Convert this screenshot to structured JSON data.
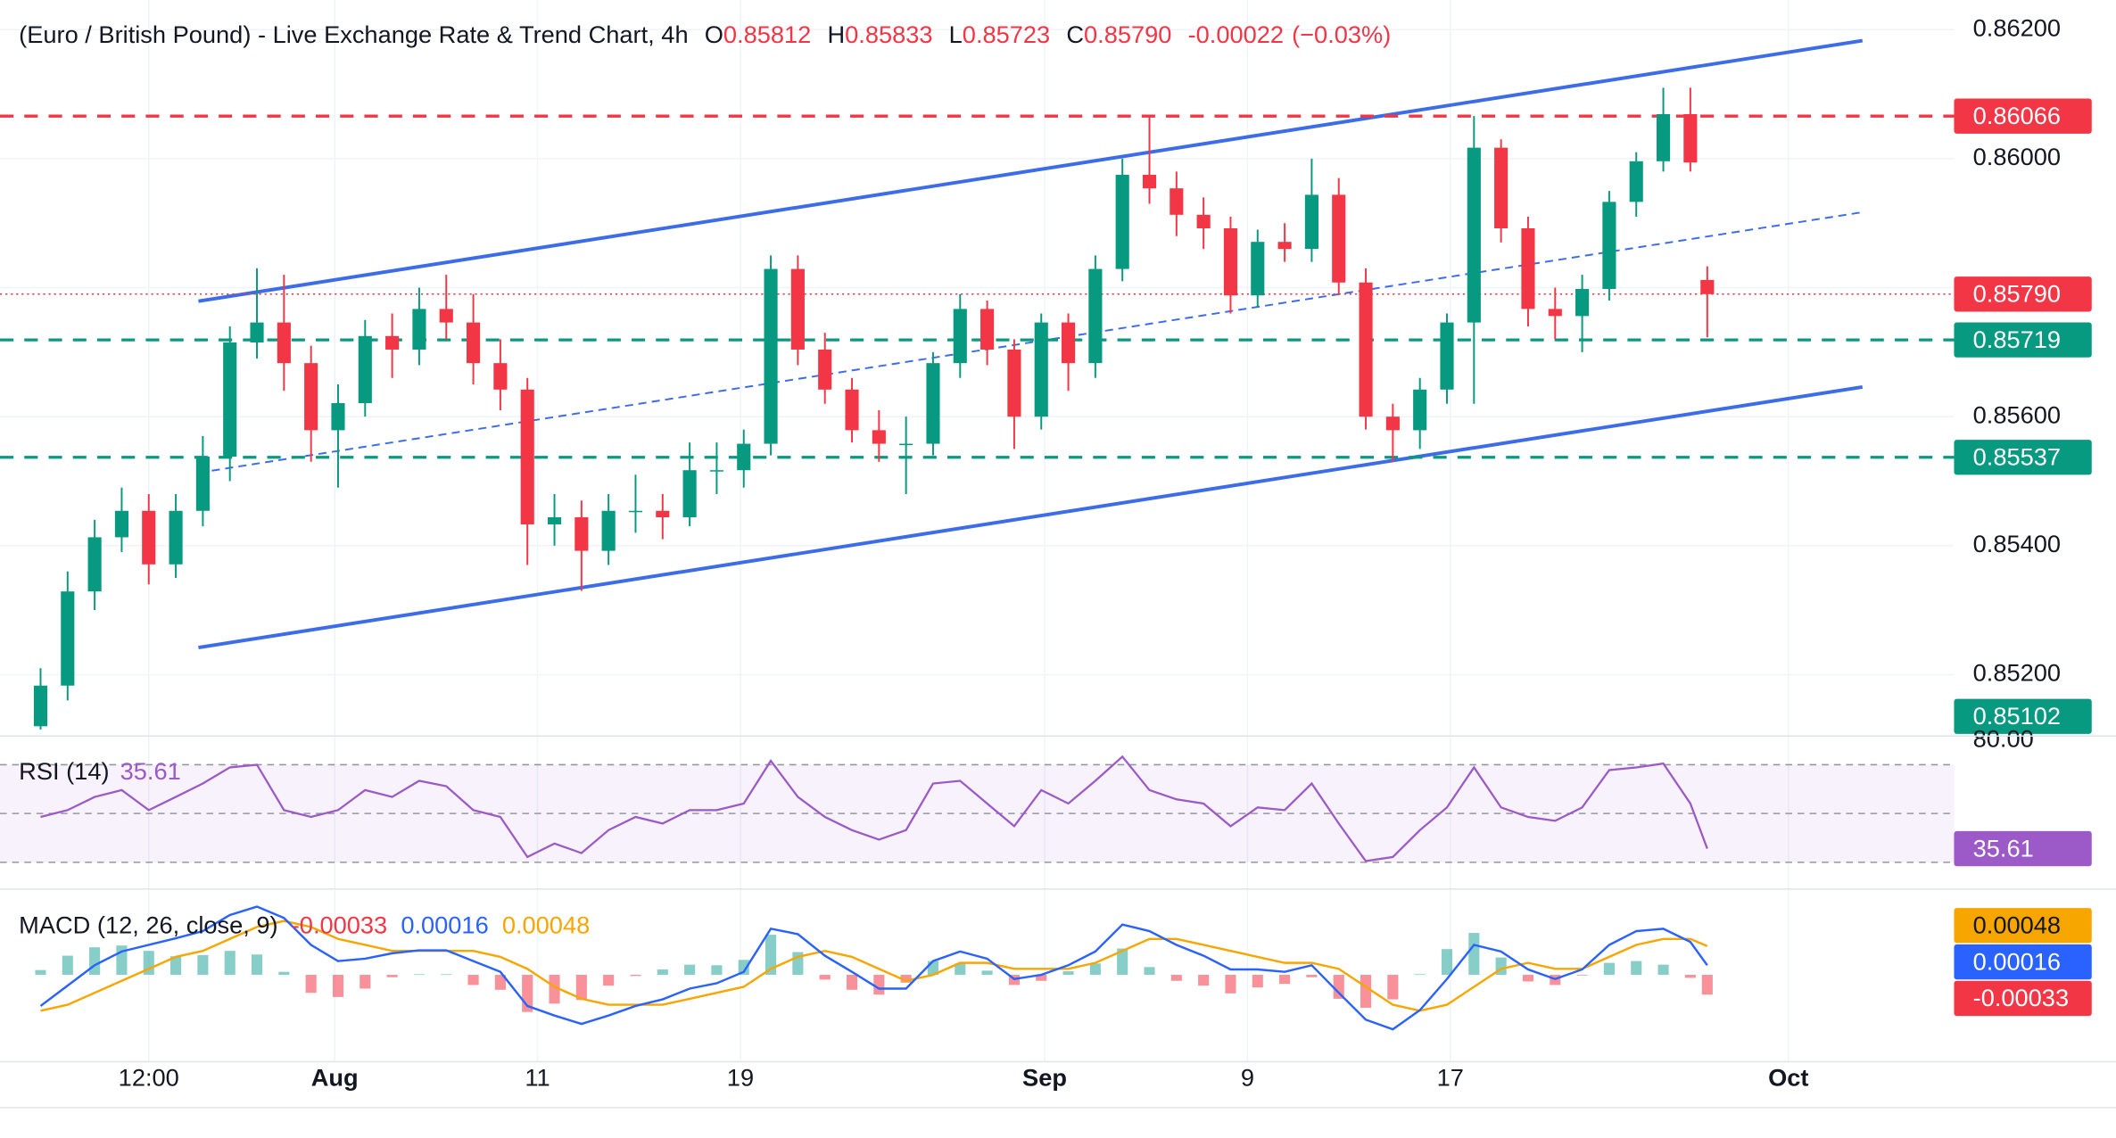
{
  "chart_data": {
    "type": "candlestick",
    "title": "(Euro / British Pound) - Live Exchange Rate & Trend Chart, 4h",
    "ohlc_summary": [
      {
        "key": "O",
        "value": 0.85812
      },
      {
        "key": "H",
        "value": 0.85833
      },
      {
        "key": "L",
        "value": 0.85723
      },
      {
        "key": "C",
        "value": 0.8579,
        "label": "0.85790"
      }
    ],
    "change": -0.00022,
    "change_pct": {
      "value": -0.03,
      "label": "(−0.03%)"
    },
    "up_color": "#089981",
    "down_color": "#f23645",
    "grid": true,
    "x": [
      -8.7,
      -7.9,
      -7.1,
      -6.3,
      -5.5,
      -4.7,
      -3.9,
      -3.1,
      -2.3,
      -1.5,
      -0.7,
      0.1,
      0.9,
      1.7,
      2.5,
      3.3,
      4.1,
      4.9,
      5.7,
      6.5,
      7.3,
      8.1,
      8.9,
      9.7,
      10.5,
      11.3,
      12.1,
      12.9,
      13.7,
      14.5,
      15.3,
      16.1,
      16.9,
      17.7,
      18.5,
      19.3,
      20.1,
      20.9,
      21.7,
      22.5,
      23.3,
      24.1,
      24.9,
      25.7,
      26.5,
      27.3,
      28.1,
      28.9,
      29.7,
      30.5,
      31.3,
      32.1,
      32.9,
      33.7,
      34.5,
      35.3,
      36.1,
      36.9,
      37.7,
      38.5,
      39.3,
      40.1,
      40.6
    ],
    "open": [
      0.8512,
      0.85183,
      0.85329,
      0.85413,
      0.85454,
      0.85371,
      0.85454,
      0.85538,
      0.85715,
      0.85746,
      0.85683,
      0.85579,
      0.85621,
      0.85725,
      0.85704,
      0.85767,
      0.85746,
      0.85683,
      0.85642,
      0.85433,
      0.85444,
      0.85392,
      0.85454,
      0.85454,
      0.85444,
      0.85517,
      0.85517,
      0.85558,
      0.85829,
      0.85704,
      0.85642,
      0.85579,
      0.85558,
      0.85558,
      0.85683,
      0.85767,
      0.85704,
      0.856,
      0.85746,
      0.85683,
      0.85829,
      0.85975,
      0.85954,
      0.85913,
      0.85892,
      0.85788,
      0.85871,
      0.8586,
      0.85944,
      0.85808,
      0.856,
      0.85579,
      0.85642,
      0.85746,
      0.86017,
      0.85892,
      0.85767,
      0.85756,
      0.85798,
      0.85933,
      0.85996,
      0.86069,
      0.85812
    ],
    "high": [
      0.8521,
      0.8536,
      0.8544,
      0.8549,
      0.8548,
      0.8548,
      0.8557,
      0.8574,
      0.8583,
      0.8582,
      0.8571,
      0.8565,
      0.8575,
      0.8576,
      0.858,
      0.8582,
      0.8579,
      0.8572,
      0.8566,
      0.8548,
      0.8547,
      0.8548,
      0.8551,
      0.8548,
      0.8556,
      0.8556,
      0.8558,
      0.8585,
      0.8585,
      0.8573,
      0.8566,
      0.8561,
      0.856,
      0.857,
      0.8579,
      0.8578,
      0.8572,
      0.8576,
      0.8576,
      0.8585,
      0.86,
      0.86066,
      0.8598,
      0.8594,
      0.8591,
      0.8589,
      0.859,
      0.86,
      0.8597,
      0.8583,
      0.8562,
      0.8566,
      0.8576,
      0.86066,
      0.8603,
      0.8591,
      0.858,
      0.8582,
      0.8595,
      0.8601,
      0.8611,
      0.8611,
      0.85833
    ],
    "low": [
      0.85115,
      0.8516,
      0.853,
      0.8539,
      0.8534,
      0.8535,
      0.8543,
      0.855,
      0.8569,
      0.8564,
      0.8553,
      0.8549,
      0.856,
      0.8566,
      0.8568,
      0.8572,
      0.8565,
      0.8561,
      0.8537,
      0.854,
      0.8533,
      0.8537,
      0.8542,
      0.8541,
      0.8543,
      0.8548,
      0.8549,
      0.8554,
      0.8568,
      0.8562,
      0.8556,
      0.8553,
      0.8548,
      0.8554,
      0.8566,
      0.8568,
      0.8555,
      0.8558,
      0.8564,
      0.8566,
      0.8581,
      0.8593,
      0.8588,
      0.8586,
      0.8576,
      0.8577,
      0.8584,
      0.8584,
      0.8579,
      0.8558,
      0.8553,
      0.8555,
      0.8562,
      0.8562,
      0.8587,
      0.8574,
      0.8572,
      0.857,
      0.8578,
      0.8591,
      0.8598,
      0.8598,
      0.85723
    ],
    "close": [
      0.85183,
      0.85329,
      0.85413,
      0.85454,
      0.85371,
      0.85454,
      0.85538,
      0.85715,
      0.85746,
      0.85683,
      0.85579,
      0.85621,
      0.85725,
      0.85704,
      0.85767,
      0.85746,
      0.85683,
      0.85642,
      0.85433,
      0.85444,
      0.85392,
      0.85454,
      0.85454,
      0.85444,
      0.85517,
      0.85517,
      0.85558,
      0.85829,
      0.85704,
      0.85642,
      0.85579,
      0.85558,
      0.85558,
      0.85683,
      0.85767,
      0.85704,
      0.856,
      0.85746,
      0.85683,
      0.85829,
      0.85975,
      0.85954,
      0.85913,
      0.85892,
      0.85788,
      0.85871,
      0.8586,
      0.85944,
      0.85808,
      0.856,
      0.85579,
      0.85642,
      0.85746,
      0.86017,
      0.85892,
      0.85767,
      0.85756,
      0.85798,
      0.85933,
      0.85996,
      0.86069,
      0.85994,
      0.8579
    ],
    "xlim": [
      -9.9,
      47.9
    ],
    "xticks": [
      {
        "value": -5.5,
        "label": "12:00"
      },
      {
        "value": 0,
        "label": "Aug"
      },
      {
        "value": 6,
        "label": "11"
      },
      {
        "value": 12,
        "label": "19"
      },
      {
        "value": 21,
        "label": "Sep"
      },
      {
        "value": 27,
        "label": "9"
      },
      {
        "value": 33,
        "label": "17"
      },
      {
        "value": 43,
        "label": "Oct"
      }
    ],
    "ylim": [
      0.85106,
      0.86246
    ],
    "yticks": [
      {
        "value": 0.862,
        "label": "0.86200"
      },
      {
        "value": 0.86,
        "label": "0.86000"
      },
      {
        "value": 0.858,
        "label": "0.85800"
      },
      {
        "value": 0.856,
        "label": "0.85600"
      },
      {
        "value": 0.854,
        "label": "0.85400"
      },
      {
        "value": 0.852,
        "label": "0.85200"
      }
    ],
    "levels": [
      {
        "value": 0.86066,
        "color": "#f23645",
        "line": "dashed"
      },
      {
        "value": 0.8579,
        "label": "0.85790",
        "color": "#f23645",
        "line": "dotted"
      },
      {
        "value": 0.85719,
        "color": "#089981",
        "line": "dashed"
      },
      {
        "value": 0.85537,
        "color": "#089981",
        "line": "dashed"
      },
      {
        "value": 0.85102,
        "color": "#089981",
        "line": "none"
      }
    ],
    "trendlines": [
      {
        "x": [
          -4.03,
          45.19
        ],
        "y": [
          0.85779,
          0.86183
        ],
        "color": "#3d6ce8",
        "style": "solid"
      },
      {
        "x": [
          -4.03,
          45.19
        ],
        "y": [
          0.85242,
          0.85646
        ],
        "color": "#3d6ce8",
        "style": "solid"
      },
      {
        "x": [
          -4.03,
          45.19
        ],
        "y": [
          0.85513,
          0.85917
        ],
        "color": "#3d6ce8",
        "style": "dashed"
      }
    ],
    "rsi": {
      "title": "RSI (14)",
      "color": "#9c59c8",
      "ylim": [
        19.6,
        81.5
      ],
      "yticks": [
        {
          "value": 80,
          "label": "80.00"
        }
      ],
      "levels": [
        70,
        50,
        30
      ],
      "values": [
        48.6,
        51.4,
        56.8,
        59.6,
        51.4,
        56.8,
        62.3,
        68.9,
        70,
        51.4,
        48.6,
        51.4,
        59.6,
        56.8,
        63.4,
        61.2,
        51.4,
        48.6,
        32.2,
        37.7,
        33.8,
        43.2,
        48.6,
        45.9,
        51.4,
        51.4,
        54.1,
        71.6,
        56.8,
        48.6,
        43.2,
        39.3,
        43.2,
        62.3,
        63.4,
        54.1,
        44.8,
        59.6,
        54.1,
        63.4,
        73.3,
        59.6,
        55.8,
        54.1,
        44.8,
        52.5,
        51.4,
        62.3,
        45.9,
        30.5,
        32.2,
        43.2,
        52.5,
        68.9,
        52.5,
        48.6,
        47,
        52.5,
        67.8,
        68.9,
        70.5,
        54.1,
        35.61
      ]
    },
    "macd": {
      "title": "MACD (12, 26, close, 9)",
      "ylim": [
        -0.00143,
        0.00141
      ],
      "macd_line": {
        "color": "#2962ff",
        "values": [
          -0.00052,
          -0.00018,
          0.00016,
          0.00039,
          0.0005,
          0.00061,
          0.00073,
          0.001,
          0.00114,
          0.00095,
          0.0005,
          0.00023,
          0.00027,
          0.00036,
          0.00041,
          0.00041,
          0.00023,
          5e-05,
          -0.00052,
          -0.00068,
          -0.00082,
          -0.00068,
          -0.00052,
          -0.00041,
          -0.00023,
          -0.00014,
          5e-05,
          0.00077,
          0.00068,
          0.00032,
          5e-05,
          -0.00023,
          -0.00023,
          0.00023,
          0.00039,
          0.00027,
          -7e-05,
          0,
          0.00016,
          0.00039,
          0.00084,
          0.00073,
          0.0005,
          0.00032,
          9e-05,
          9e-05,
          5e-05,
          0.00016,
          -0.0003,
          -0.00075,
          -0.00091,
          -0.00059,
          -7e-05,
          0.0005,
          0.00039,
          9e-05,
          -7e-05,
          9e-05,
          0.0005,
          0.00073,
          0.00077,
          0.00055,
          0.00016
        ]
      },
      "signal_line": {
        "color": "#f7a600",
        "values": [
          -0.0006,
          -0.0005,
          -0.0003,
          -0.0001,
          0.0001,
          0.0003,
          0.0004,
          0.0006,
          0.0008,
          0.0009,
          0.0008,
          0.0006,
          0.0005,
          0.0004,
          0.0004,
          0.0004,
          0.0004,
          0.0003,
          0.0001,
          -0.0002,
          -0.0004,
          -0.0005,
          -0.0005,
          -0.0005,
          -0.0004,
          -0.0003,
          -0.0002,
          0.0001,
          0.0003,
          0.0004,
          0.0003,
          0.0001,
          -0.0001,
          0,
          0.0002,
          0.0002,
          0.0001,
          0.0001,
          0.0001,
          0.0002,
          0.0004,
          0.0006,
          0.0006,
          0.0005,
          0.0004,
          0.0003,
          0.0002,
          0.0002,
          0.0001,
          -0.0002,
          -0.0005,
          -0.0006,
          -0.0005,
          -0.0002,
          0.0001,
          0.0002,
          0.0001,
          0.0001,
          0.0003,
          0.0005,
          0.0006,
          0.0006,
          0.00048
        ]
      },
      "histogram": {
        "up_color": "#26a69a",
        "down_color": "#f23645",
        "values": [
          8e-05,
          0.00032,
          0.00046,
          0.00049,
          0.0004,
          0.00031,
          0.00033,
          0.0004,
          0.00034,
          5e-05,
          -0.0003,
          -0.00037,
          -0.00023,
          -4e-05,
          1e-05,
          1e-05,
          -0.00017,
          -0.00025,
          -0.00062,
          -0.00048,
          -0.00042,
          -0.00018,
          -2e-05,
          9e-05,
          0.00017,
          0.00016,
          0.00025,
          0.00067,
          0.00038,
          -8e-05,
          -0.00025,
          -0.00033,
          -0.00013,
          0.00023,
          0.00019,
          7e-05,
          -0.00017,
          -0.0001,
          6e-05,
          0.00019,
          0.00044,
          0.00013,
          -0.0001,
          -0.00018,
          -0.00031,
          -0.00021,
          -0.00015,
          -4e-05,
          -0.0004,
          -0.00055,
          -0.00041,
          1e-05,
          0.00043,
          0.0007,
          0.00029,
          -0.00011,
          -0.00017,
          -1e-05,
          0.0002,
          0.00023,
          0.00017,
          -5e-05,
          -0.00033
        ]
      }
    }
  }
}
